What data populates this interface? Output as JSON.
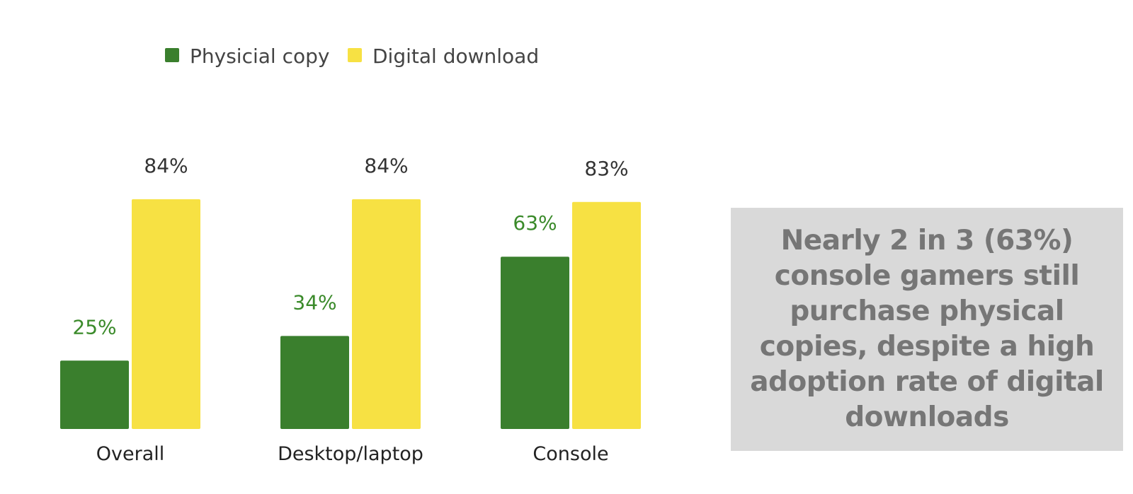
{
  "chart_data": {
    "type": "bar",
    "categories": [
      "Overall",
      "Desktop/laptop",
      "Console"
    ],
    "series": [
      {
        "name": "Physicial copy",
        "values": [
          25,
          34,
          63
        ],
        "labels": [
          "25%",
          "34%",
          "63%"
        ],
        "color": "#3a7f2d",
        "label_color": "#3a8a2a"
      },
      {
        "name": "Digital download",
        "values": [
          84,
          84,
          83
        ],
        "labels": [
          "84%",
          "84%",
          "83%"
        ],
        "color": "#f7e143",
        "label_color": "#333333"
      }
    ],
    "legend_position": "top-left",
    "grid": false,
    "ylim": [
      0,
      100
    ],
    "title": "",
    "xlabel": "",
    "ylabel": ""
  },
  "callout": {
    "text": "Nearly 2 in 3 (63%) console gamers still purchase physical copies, despite a high adoption rate of digital downloads"
  }
}
